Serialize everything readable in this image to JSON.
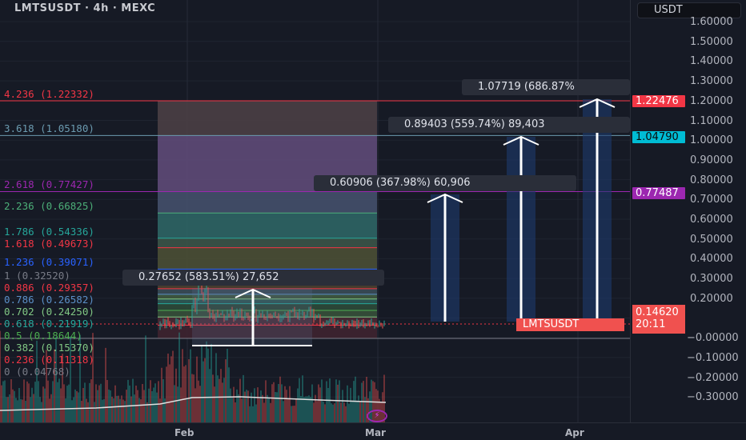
{
  "header": {
    "title": "LMTSUSDT · 4h · MEXC"
  },
  "price_axis": {
    "currency": "USDT",
    "ticks": [
      "1.60000",
      "1.50000",
      "1.40000",
      "1.30000",
      "1.20000",
      "1.10000",
      "1.00000",
      "0.90000",
      "0.80000",
      "0.70000",
      "0.60000",
      "0.50000",
      "0.40000",
      "0.30000",
      "0.20000",
      "−0.00000",
      "−0.10000",
      "−0.20000",
      "−0.30000"
    ],
    "tags": [
      {
        "text": "1.22476",
        "color": "#f23645"
      },
      {
        "text": "1.04790",
        "color": "#00bcd4"
      },
      {
        "text": "0.77487",
        "color": "#9c27b0"
      }
    ],
    "last_price": "0.14620",
    "countdown": "20:11",
    "last_price_color": "#f0514f"
  },
  "symbol_tag": "LMTSUSDT",
  "time_axis": [
    "Feb",
    "Mar",
    "Apr"
  ],
  "fib_levels": [
    {
      "label": "4.236 (1.22332)",
      "level": 4.236,
      "color": "#f23645"
    },
    {
      "label": "3.618 (1.05180)",
      "level": 3.618,
      "color": "#6b9bb0"
    },
    {
      "label": "2.618 (0.77427)",
      "level": 2.618,
      "color": "#9c27b0"
    },
    {
      "label": "2.236 (0.66825)",
      "level": 2.236,
      "color": "#4caf78"
    },
    {
      "label": "1.786 (0.54336)",
      "level": 1.786,
      "color": "#26a69a"
    },
    {
      "label": "1.618 (0.49673)",
      "level": 1.618,
      "color": "#f23645"
    },
    {
      "label": "1.236 (0.39071)",
      "level": 1.236,
      "color": "#2962ff"
    },
    {
      "label": "1 (0.32520)",
      "level": 1,
      "color": "#787b86"
    },
    {
      "label": "0.886 (0.29357)",
      "level": 0.886,
      "color": "#f23645"
    },
    {
      "label": "0.786 (0.26582)",
      "level": 0.786,
      "color": "#5b8fc7"
    },
    {
      "label": "0.702 (0.24250)",
      "level": 0.702,
      "color": "#81c784"
    },
    {
      "label": "0.618 (0.21919)",
      "level": 0.618,
      "color": "#26a69a"
    },
    {
      "label": "0.5 (0.18644)",
      "level": 0.5,
      "color": "#4caf50"
    },
    {
      "label": "0.382 (0.15370)",
      "level": 0.382,
      "color": "#81c784"
    },
    {
      "label": "0.236 (0.11318)",
      "level": 0.236,
      "color": "#f23645"
    },
    {
      "label": "0 (0.04768)",
      "level": 0,
      "color": "#787b86"
    }
  ],
  "measurements": [
    {
      "text": "0.27652 (583.51%) 27,652"
    },
    {
      "text": "0.60906 (367.98%) 60,906"
    },
    {
      "text": "0.89403 (559.74%) 89,403"
    },
    {
      "text": "1.07719 (686.87%"
    }
  ]
}
